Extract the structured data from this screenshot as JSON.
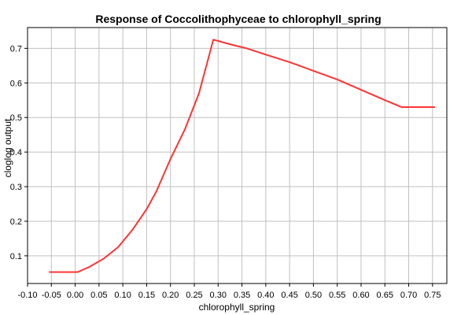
{
  "chart_data": {
    "type": "line",
    "title": "Response of Coccolithophyceae to chlorophyll_spring",
    "xlabel": "chlorophyll_spring",
    "ylabel": "cloglog output",
    "xlim": [
      -0.1,
      0.78
    ],
    "ylim": [
      0.02,
      0.76
    ],
    "grid": true,
    "x_ticks": [
      -0.1,
      -0.05,
      0.0,
      0.05,
      0.1,
      0.15,
      0.2,
      0.25,
      0.3,
      0.35,
      0.4,
      0.45,
      0.5,
      0.55,
      0.6,
      0.65,
      0.7,
      0.75
    ],
    "x_tick_labels": [
      "-0.10",
      "-0.05",
      "0.00",
      "0.05",
      "0.10",
      "0.15",
      "0.20",
      "0.25",
      "0.30",
      "0.35",
      "0.40",
      "0.45",
      "0.50",
      "0.55",
      "0.60",
      "0.65",
      "0.70",
      "0.75"
    ],
    "y_ticks": [
      0.1,
      0.2,
      0.3,
      0.4,
      0.5,
      0.6,
      0.7
    ],
    "y_tick_labels": [
      "0.1",
      "0.2",
      "0.3",
      "0.4",
      "0.5",
      "0.6",
      "0.7"
    ],
    "series": [
      {
        "color": "#ff3333",
        "x": [
          -0.055,
          0.005,
          0.03,
          0.06,
          0.09,
          0.12,
          0.15,
          0.17,
          0.2,
          0.23,
          0.26,
          0.29,
          0.33,
          0.36,
          0.4,
          0.45,
          0.5,
          0.55,
          0.6,
          0.65,
          0.685,
          0.755
        ],
        "y": [
          0.053,
          0.053,
          0.068,
          0.092,
          0.125,
          0.175,
          0.235,
          0.285,
          0.38,
          0.465,
          0.57,
          0.725,
          0.71,
          0.7,
          0.682,
          0.66,
          0.635,
          0.61,
          0.58,
          0.55,
          0.53,
          0.53
        ]
      }
    ]
  }
}
